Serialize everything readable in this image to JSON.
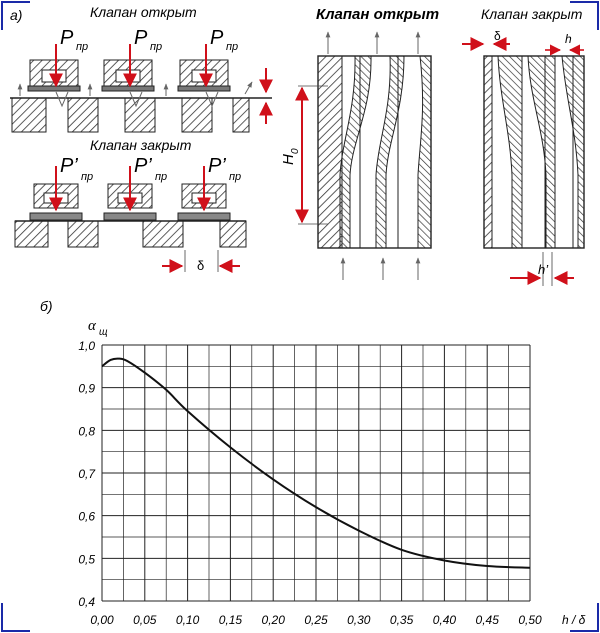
{
  "colors": {
    "frame": "#1a2aa8",
    "arrow": "#d0101a",
    "hatch": "#333333",
    "ink": "#111111"
  },
  "panel_a": {
    "label": "а)",
    "title_open": "Клапан открыт",
    "title_closed": "Клапан закрыт",
    "force_open": {
      "main": "P",
      "sub": "пр"
    },
    "force_closed": {
      "main": "P’",
      "sub": "пр"
    },
    "delta": "δ"
  },
  "panel_mid": {
    "title": "Клапан открыт",
    "height_label": {
      "main": "H",
      "sub": "0"
    }
  },
  "panel_right": {
    "title": "Клапан закрыт",
    "delta": "δ",
    "h": "h",
    "h_prime": "h’"
  },
  "panel_b": {
    "label": "б)"
  },
  "chart_data": {
    "type": "line",
    "ylabel": {
      "main": "α",
      "sub": "щ"
    },
    "xlabel": "h / δ",
    "xlim": [
      0,
      0.5
    ],
    "ylim": [
      0.4,
      1.0
    ],
    "grid": true,
    "x_ticks": [
      "0,00",
      "0,05",
      "0,10",
      "0,15",
      "0,20",
      "0,25",
      "0,30",
      "0,35",
      "0,40",
      "0,45",
      "0,50"
    ],
    "y_ticks": [
      "0,4",
      "0,5",
      "0,6",
      "0,7",
      "0,8",
      "0,9",
      "1,0"
    ],
    "x": [
      0.0,
      0.01,
      0.02,
      0.03,
      0.05,
      0.075,
      0.1,
      0.15,
      0.2,
      0.25,
      0.3,
      0.35,
      0.4,
      0.45,
      0.5
    ],
    "y": [
      0.95,
      0.965,
      0.968,
      0.962,
      0.935,
      0.895,
      0.845,
      0.76,
      0.685,
      0.62,
      0.565,
      0.52,
      0.495,
      0.482,
      0.478
    ]
  }
}
